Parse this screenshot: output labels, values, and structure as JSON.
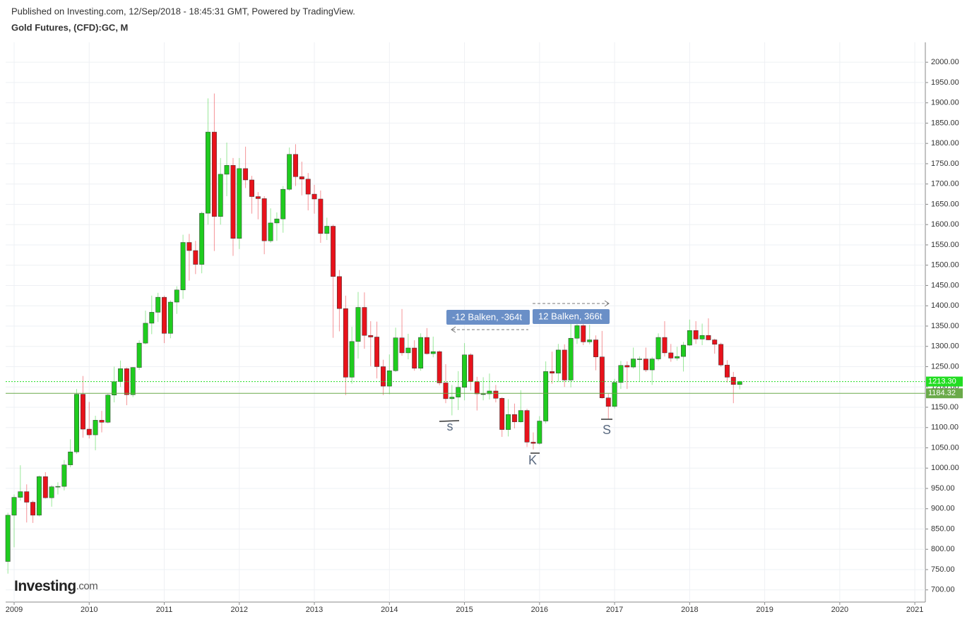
{
  "header": {
    "published": "Published on Investing.com, 12/Sep/2018 - 18:45:31 GMT, Powered by TradingView.",
    "symbol": "Gold Futures, (CFD):GC, M"
  },
  "logo": {
    "name": "Investing",
    "suffix": ".com"
  },
  "chart_data": {
    "type": "candlestick",
    "up_color": "#1fcc1f",
    "down_color": "#e8121b",
    "grid": true,
    "xlim": [
      2008.887,
      2021.14
    ],
    "xticks": [
      2009,
      2010,
      2011,
      2012,
      2013,
      2014,
      2015,
      2016,
      2017,
      2018,
      2019,
      2020,
      2021
    ],
    "ylim": [
      670,
      2049
    ],
    "yticks": [
      {
        "value": 700,
        "label": "700.00"
      },
      {
        "value": 750,
        "label": "750.00"
      },
      {
        "value": 800,
        "label": "800.00"
      },
      {
        "value": 850,
        "label": "850.00"
      },
      {
        "value": 900,
        "label": "900.00"
      },
      {
        "value": 950,
        "label": "950.00"
      },
      {
        "value": 1000,
        "label": "1000.00"
      },
      {
        "value": 1050,
        "label": "1050.00"
      },
      {
        "value": 1100,
        "label": "1100.00"
      },
      {
        "value": 1150,
        "label": "1150.00"
      },
      {
        "value": 1200,
        "label": "1200.00"
      },
      {
        "value": 1250,
        "label": "1250.00"
      },
      {
        "value": 1300,
        "label": "1300.00"
      },
      {
        "value": 1350,
        "label": "1350.00"
      },
      {
        "value": 1400,
        "label": "1400.00"
      },
      {
        "value": 1450,
        "label": "1450.00"
      },
      {
        "value": 1500,
        "label": "1500.00"
      },
      {
        "value": 1550,
        "label": "1550.00"
      },
      {
        "value": 1600,
        "label": "1600.00"
      },
      {
        "value": 1650,
        "label": "1650.00"
      },
      {
        "value": 1700,
        "label": "1700.00"
      },
      {
        "value": 1750,
        "label": "1750.00"
      },
      {
        "value": 1800,
        "label": "1800.00"
      },
      {
        "value": 1850,
        "label": "1850.00"
      },
      {
        "value": 1900,
        "label": "1900.00"
      },
      {
        "value": 1950,
        "label": "1950.00"
      },
      {
        "value": 2000,
        "label": "2000.00"
      }
    ],
    "price_lines": [
      {
        "value": 1213.3,
        "label": "1213.30",
        "color": "#22dd22"
      },
      {
        "value": 1184.32,
        "label": "1184.32",
        "color": "#6aaa4a"
      }
    ],
    "annotations": [
      "-12 Balken, -364t",
      "12 Balken, 366t",
      "s",
      "K",
      "S"
    ],
    "x": [
      2008.917,
      2009,
      2009.083,
      2009.167,
      2009.25,
      2009.333,
      2009.417,
      2009.5,
      2009.583,
      2009.667,
      2009.75,
      2009.833,
      2009.917,
      2010,
      2010.083,
      2010.167,
      2010.25,
      2010.333,
      2010.417,
      2010.5,
      2010.583,
      2010.667,
      2010.75,
      2010.833,
      2010.917,
      2011,
      2011.083,
      2011.167,
      2011.25,
      2011.333,
      2011.417,
      2011.5,
      2011.583,
      2011.667,
      2011.75,
      2011.833,
      2011.917,
      2012,
      2012.083,
      2012.167,
      2012.25,
      2012.333,
      2012.417,
      2012.5,
      2012.583,
      2012.667,
      2012.75,
      2012.833,
      2012.917,
      2013,
      2013.083,
      2013.167,
      2013.25,
      2013.333,
      2013.417,
      2013.5,
      2013.583,
      2013.667,
      2013.75,
      2013.833,
      2013.917,
      2014,
      2014.083,
      2014.167,
      2014.25,
      2014.333,
      2014.417,
      2014.5,
      2014.583,
      2014.667,
      2014.75,
      2014.833,
      2014.917,
      2015,
      2015.083,
      2015.167,
      2015.25,
      2015.333,
      2015.417,
      2015.5,
      2015.583,
      2015.667,
      2015.75,
      2015.833,
      2015.917,
      2016,
      2016.083,
      2016.167,
      2016.25,
      2016.333,
      2016.417,
      2016.5,
      2016.583,
      2016.667,
      2016.75,
      2016.833,
      2016.917,
      2017,
      2017.083,
      2017.167,
      2017.25,
      2017.333,
      2017.417,
      2017.5,
      2017.583,
      2017.667,
      2017.75,
      2017.833,
      2017.917,
      2018,
      2018.083,
      2018.167,
      2018.25,
      2018.333,
      2018.417,
      2018.5,
      2018.583,
      2018.667
    ],
    "open": [
      770,
      884,
      928,
      942,
      916,
      884,
      979,
      927,
      954,
      955,
      1008,
      1040,
      1182,
      1096,
      1082,
      1118,
      1113,
      1180,
      1213,
      1245,
      1181,
      1248,
      1308,
      1357,
      1384,
      1421,
      1332,
      1409,
      1439,
      1556,
      1536,
      1502,
      1628,
      1828,
      1620,
      1724,
      1746,
      1566,
      1738,
      1710,
      1669,
      1664,
      1560,
      1604,
      1614,
      1687,
      1773,
      1718,
      1712,
      1675,
      1663,
      1578,
      1596,
      1472,
      1393,
      1224,
      1312,
      1396,
      1327,
      1323,
      1250,
      1202,
      1240,
      1321,
      1284,
      1296,
      1246,
      1322,
      1282,
      1287,
      1210,
      1171,
      1175,
      1199,
      1279,
      1213,
      1183,
      1183,
      1190,
      1172,
      1095,
      1132,
      1114,
      1142,
      1064,
      1061,
      1116,
      1238,
      1234,
      1291,
      1217,
      1320,
      1351,
      1311,
      1316,
      1274,
      1173,
      1152,
      1211,
      1253,
      1249,
      1269,
      1269,
      1242,
      1269,
      1322,
      1284,
      1271,
      1275,
      1303,
      1339,
      1318,
      1327,
      1316,
      1305,
      1254,
      1224,
      1206
    ],
    "high": [
      890,
      935,
      1007,
      960,
      920,
      982,
      990,
      958,
      965,
      1020,
      1071,
      1195,
      1227,
      1163,
      1129,
      1141,
      1183,
      1250,
      1265,
      1248,
      1249,
      1315,
      1388,
      1425,
      1432,
      1425,
      1413,
      1448,
      1575,
      1577,
      1560,
      1632,
      1911,
      1923,
      1764,
      1802,
      1764,
      1764,
      1792,
      1720,
      1680,
      1670,
      1640,
      1630,
      1695,
      1790,
      1798,
      1755,
      1727,
      1698,
      1684,
      1617,
      1600,
      1488,
      1425,
      1348,
      1434,
      1433,
      1362,
      1361,
      1267,
      1280,
      1346,
      1392,
      1331,
      1315,
      1332,
      1345,
      1324,
      1290,
      1256,
      1205,
      1239,
      1308,
      1283,
      1225,
      1224,
      1233,
      1205,
      1175,
      1170,
      1159,
      1192,
      1146,
      1088,
      1128,
      1263,
      1287,
      1306,
      1305,
      1362,
      1378,
      1375,
      1353,
      1327,
      1338,
      1183,
      1220,
      1264,
      1263,
      1297,
      1275,
      1297,
      1274,
      1332,
      1362,
      1306,
      1299,
      1311,
      1366,
      1362,
      1356,
      1369,
      1319,
      1309,
      1266,
      1237,
      1215
    ],
    "low": [
      740,
      805,
      920,
      866,
      865,
      881,
      925,
      905,
      935,
      945,
      1002,
      1035,
      1075,
      1073,
      1044,
      1088,
      1110,
      1162,
      1200,
      1155,
      1175,
      1242,
      1305,
      1330,
      1360,
      1308,
      1320,
      1380,
      1417,
      1462,
      1478,
      1480,
      1600,
      1535,
      1600,
      1670,
      1523,
      1540,
      1690,
      1627,
      1613,
      1527,
      1555,
      1560,
      1580,
      1683,
      1695,
      1672,
      1635,
      1627,
      1555,
      1562,
      1321,
      1337,
      1180,
      1208,
      1270,
      1294,
      1251,
      1221,
      1180,
      1182,
      1237,
      1277,
      1268,
      1240,
      1240,
      1280,
      1273,
      1204,
      1160,
      1130,
      1143,
      1167,
      1191,
      1142,
      1167,
      1169,
      1162,
      1077,
      1078,
      1098,
      1112,
      1052,
      1046,
      1058,
      1110,
      1208,
      1212,
      1200,
      1199,
      1306,
      1303,
      1305,
      1241,
      1171,
      1122,
      1147,
      1195,
      1195,
      1245,
      1214,
      1237,
      1205,
      1264,
      1275,
      1262,
      1265,
      1238,
      1301,
      1306,
      1303,
      1315,
      1282,
      1250,
      1211,
      1160,
      1194
    ],
    "close": [
      884,
      928,
      942,
      916,
      884,
      979,
      927,
      954,
      955,
      1008,
      1040,
      1182,
      1096,
      1082,
      1118,
      1113,
      1180,
      1213,
      1245,
      1181,
      1248,
      1308,
      1357,
      1384,
      1421,
      1332,
      1409,
      1439,
      1556,
      1536,
      1502,
      1628,
      1828,
      1620,
      1724,
      1746,
      1566,
      1738,
      1710,
      1669,
      1664,
      1560,
      1604,
      1614,
      1687,
      1773,
      1718,
      1712,
      1675,
      1663,
      1578,
      1596,
      1472,
      1393,
      1224,
      1312,
      1396,
      1327,
      1323,
      1250,
      1202,
      1240,
      1321,
      1284,
      1296,
      1246,
      1322,
      1282,
      1287,
      1210,
      1171,
      1175,
      1199,
      1279,
      1213,
      1183,
      1183,
      1190,
      1172,
      1095,
      1132,
      1114,
      1142,
      1064,
      1061,
      1116,
      1238,
      1234,
      1291,
      1217,
      1320,
      1351,
      1311,
      1316,
      1274,
      1173,
      1152,
      1211,
      1253,
      1249,
      1269,
      1269,
      1242,
      1269,
      1322,
      1284,
      1271,
      1275,
      1303,
      1339,
      1318,
      1327,
      1316,
      1305,
      1254,
      1224,
      1206,
      1213.3
    ]
  }
}
